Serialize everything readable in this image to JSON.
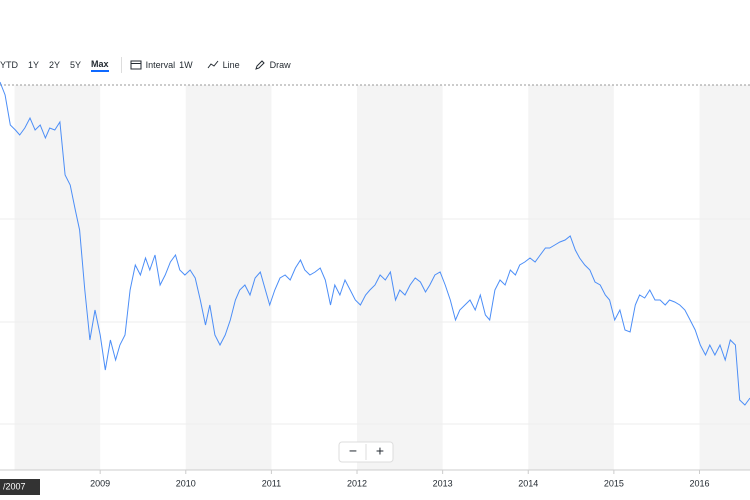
{
  "toolbar": {
    "ranges": [
      "YTD",
      "1Y",
      "2Y",
      "5Y",
      "Max"
    ],
    "interval_label": "Interval",
    "interval_value": "1W",
    "chart_type": "Line",
    "draw": "Draw"
  },
  "zoom": {
    "out": "−",
    "in": "+"
  },
  "crosshair_label": "/2007",
  "chart_data": {
    "type": "line",
    "color": "#4c8ef7",
    "xlim": [
      2007.83,
      2016.59
    ],
    "xticks": [
      2009,
      2010,
      2011,
      2012,
      2013,
      2014,
      2015,
      2016
    ],
    "ylim": [
      0,
      400
    ],
    "x": [
      2007.83,
      2007.89,
      2007.95,
      2008.01,
      2008.06,
      2008.12,
      2008.18,
      2008.24,
      2008.3,
      2008.36,
      2008.41,
      2008.47,
      2008.53,
      2008.59,
      2008.65,
      2008.71,
      2008.76,
      2008.82,
      2008.88,
      2008.94,
      2009.0,
      2009.06,
      2009.12,
      2009.18,
      2009.23,
      2009.29,
      2009.35,
      2009.41,
      2009.47,
      2009.53,
      2009.58,
      2009.64,
      2009.7,
      2009.76,
      2009.82,
      2009.88,
      2009.93,
      2009.99,
      2010.05,
      2010.11,
      2010.17,
      2010.23,
      2010.28,
      2010.34,
      2010.4,
      2010.46,
      2010.52,
      2010.58,
      2010.63,
      2010.69,
      2010.75,
      2010.81,
      2010.87,
      2010.93,
      2010.98,
      2011.04,
      2011.1,
      2011.16,
      2011.22,
      2011.28,
      2011.34,
      2011.39,
      2011.45,
      2011.51,
      2011.57,
      2011.63,
      2011.69,
      2011.74,
      2011.8,
      2011.86,
      2011.92,
      2011.98,
      2012.04,
      2012.1,
      2012.15,
      2012.21,
      2012.27,
      2012.33,
      2012.39,
      2012.45,
      2012.5,
      2012.56,
      2012.62,
      2012.68,
      2012.74,
      2012.8,
      2012.85,
      2012.91,
      2012.97,
      2013.03,
      2013.09,
      2013.15,
      2013.2,
      2013.26,
      2013.32,
      2013.38,
      2013.44,
      2013.5,
      2013.55,
      2013.61,
      2013.67,
      2013.73,
      2013.79,
      2013.85,
      2013.9,
      2013.96,
      2014.02,
      2014.08,
      2014.14,
      2014.2,
      2014.25,
      2014.31,
      2014.37,
      2014.43,
      2014.49,
      2014.55,
      2014.6,
      2014.66,
      2014.72,
      2014.78,
      2014.84,
      2014.9,
      2014.95,
      2015.01,
      2015.07,
      2015.13,
      2015.19,
      2015.25,
      2015.3,
      2015.36,
      2015.42,
      2015.48,
      2015.54,
      2015.6,
      2015.65,
      2015.71,
      2015.77,
      2015.83,
      2015.89,
      2015.95,
      2016.01,
      2016.07,
      2016.12,
      2016.18,
      2016.24,
      2016.3,
      2016.36,
      2016.42,
      2016.47,
      2016.53,
      2016.59
    ],
    "values": [
      388,
      375,
      345,
      340,
      335,
      342,
      352,
      340,
      345,
      332,
      342,
      340,
      348,
      295,
      285,
      260,
      240,
      180,
      130,
      160,
      135,
      100,
      130,
      110,
      125,
      135,
      180,
      205,
      195,
      212,
      200,
      215,
      185,
      195,
      208,
      215,
      200,
      195,
      200,
      192,
      170,
      145,
      165,
      135,
      125,
      135,
      150,
      170,
      180,
      185,
      175,
      192,
      198,
      180,
      165,
      180,
      192,
      195,
      190,
      202,
      210,
      200,
      195,
      198,
      202,
      190,
      165,
      185,
      175,
      190,
      180,
      170,
      165,
      175,
      180,
      185,
      195,
      190,
      198,
      170,
      180,
      175,
      185,
      192,
      188,
      178,
      185,
      195,
      198,
      185,
      170,
      150,
      160,
      165,
      170,
      160,
      175,
      155,
      150,
      180,
      190,
      185,
      200,
      195,
      205,
      208,
      212,
      208,
      215,
      222,
      222,
      225,
      228,
      230,
      234,
      220,
      212,
      205,
      200,
      188,
      185,
      175,
      170,
      150,
      160,
      140,
      138,
      165,
      175,
      172,
      180,
      170,
      170,
      165,
      170,
      168,
      165,
      160,
      150,
      140,
      125,
      115,
      125,
      115,
      125,
      110,
      130,
      125,
      70,
      65,
      72
    ]
  }
}
